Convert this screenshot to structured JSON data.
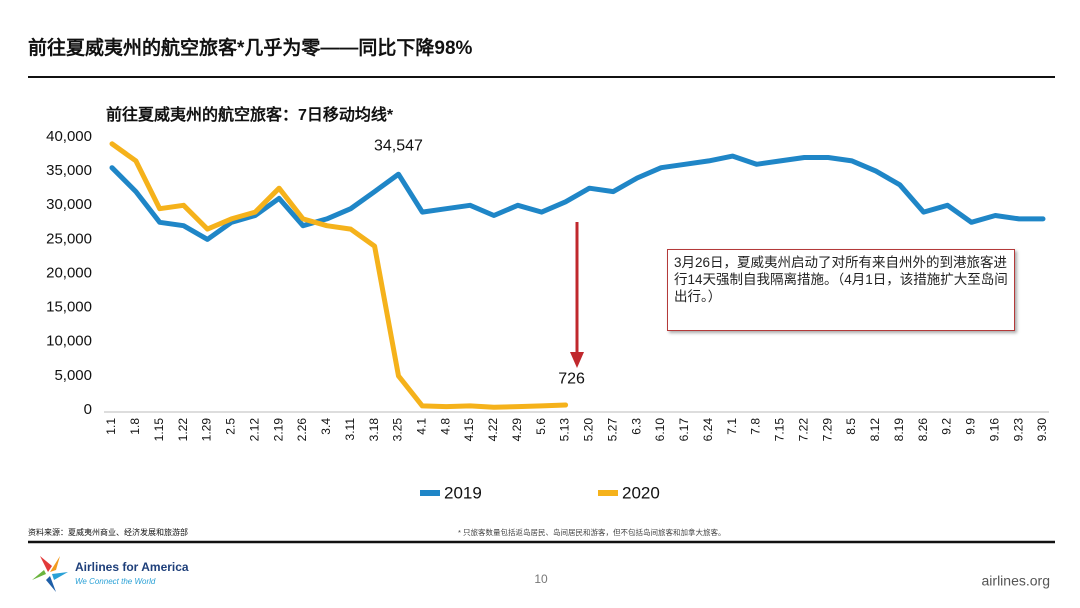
{
  "header": {
    "title": "前往夏威夷州的航空旅客*几乎为零——同比下降98%"
  },
  "chart_data": {
    "type": "line",
    "title": "前往夏威夷州的航空旅客：7日移动均线*",
    "categories": [
      "1.1",
      "1.8",
      "1.15",
      "1.22",
      "1.29",
      "2.5",
      "2.12",
      "2.19",
      "2.26",
      "3.4",
      "3.11",
      "3.18",
      "3.25",
      "4.1",
      "4.8",
      "4.15",
      "4.22",
      "4.29",
      "5.6",
      "5.13",
      "5.20",
      "5.27",
      "6.3",
      "6.10",
      "6.17",
      "6.24",
      "7.1",
      "7.8",
      "7.15",
      "7.22",
      "7.29",
      "8.5",
      "8.12",
      "8.19",
      "8.26",
      "9.2",
      "9.9",
      "9.16",
      "9.23",
      "9.30"
    ],
    "series": [
      {
        "name": "2019",
        "color": "#1f86c7",
        "values": [
          35500,
          32000,
          27500,
          27000,
          25000,
          27500,
          28500,
          31000,
          27000,
          28000,
          29500,
          32000,
          34547,
          29000,
          29500,
          30000,
          28500,
          30000,
          29000,
          30500,
          32500,
          32000,
          34000,
          35500,
          36000,
          36500,
          37200,
          36000,
          36500,
          37000,
          37000,
          36500,
          35000,
          33000,
          29000,
          30000,
          27500,
          28500,
          28000,
          28000
        ],
        "value_labels": [
          null,
          null,
          null,
          null,
          null,
          null,
          null,
          null,
          null,
          null,
          null,
          null,
          "34,547",
          null,
          null,
          null,
          null,
          null,
          null,
          null,
          null,
          null,
          null,
          null,
          null,
          null,
          null,
          null,
          null,
          null,
          null,
          null,
          null,
          null,
          null,
          null,
          null,
          null,
          null,
          null
        ]
      },
      {
        "name": "2020",
        "color": "#f5b21b",
        "values": [
          39000,
          36500,
          29500,
          30000,
          26500,
          28000,
          29000,
          32500,
          28000,
          27000,
          26500,
          24000,
          5000,
          600,
          500,
          600,
          400,
          500,
          600,
          726,
          null,
          null,
          null,
          null,
          null,
          null,
          null,
          null,
          null,
          null,
          null,
          null,
          null,
          null,
          null,
          null,
          null,
          null,
          null,
          null
        ]
      }
    ],
    "ylim": [
      0,
      40000
    ],
    "yticks": [
      0,
      {
        "value": 5000,
        "label": "5,000"
      },
      {
        "value": 10000,
        "label": "10,000"
      },
      {
        "value": 15000,
        "label": "15,000"
      },
      {
        "value": 20000,
        "label": "20,000"
      },
      {
        "value": 25000,
        "label": "25,000"
      },
      {
        "value": 30000,
        "label": "30,000"
      },
      {
        "value": 35000,
        "label": "35,000"
      },
      {
        "value": 40000,
        "label": "40,000"
      }
    ],
    "annotation": "3月26日，夏威夷州启动了对所有来自州外的到港旅客进行14天强制自我隔离措施。（4月1日，该措施扩大至岛间出行。）",
    "legend": "bottom"
  },
  "footer": {
    "source": "资料来源：夏威夷州商业、经济发展和旅游部",
    "note": "* 只旅客数量包括返岛居民、岛间居民和游客，但不包括岛间旅客和加拿大旅客。",
    "logo": "Airlines for America",
    "tagline": "We Connect the World",
    "page": "10",
    "site": "airlines.org"
  }
}
